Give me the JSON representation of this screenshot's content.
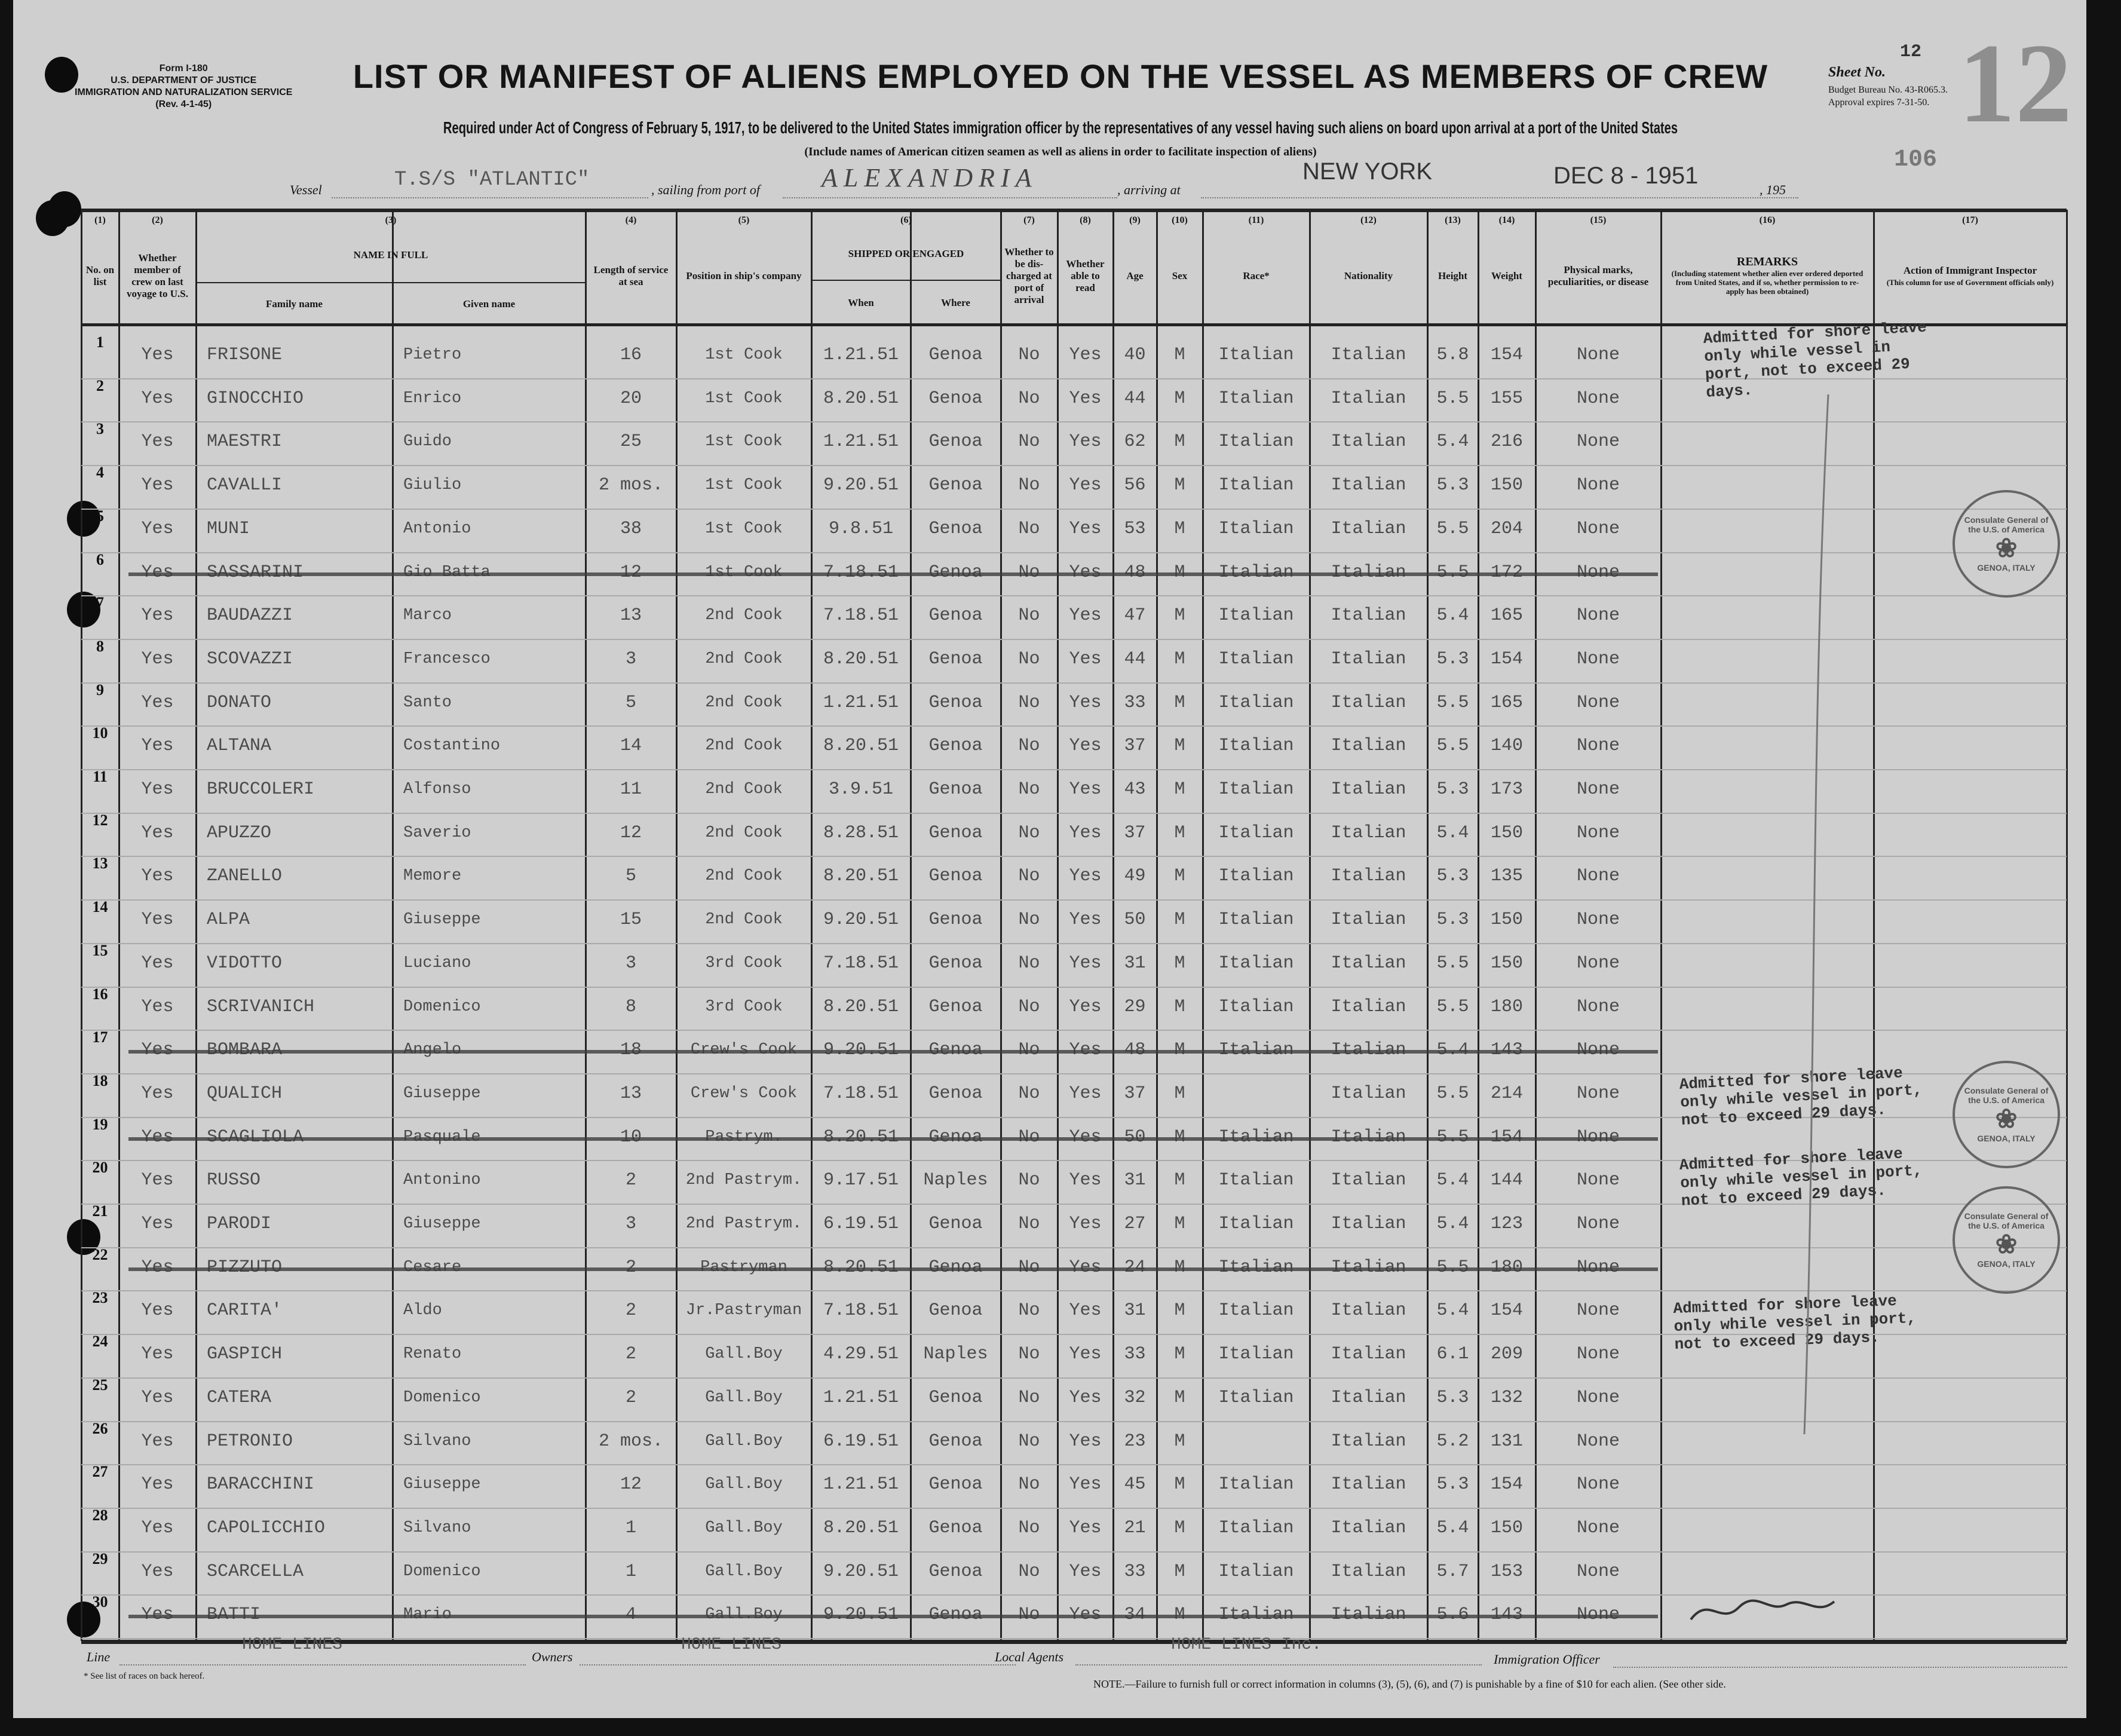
{
  "form": {
    "number": "Form I-180",
    "department": "U.S. DEPARTMENT OF JUSTICE",
    "service": "IMMIGRATION AND NATURALIZATION SERVICE",
    "revision": "(Rev. 4-1-45)"
  },
  "title": "LIST OR MANIFEST OF ALIENS EMPLOYED ON THE VESSEL AS MEMBERS OF CREW",
  "subtitle": "Required under Act of Congress of February 5, 1917, to be delivered to the United States immigration officer by the representatives of any vessel having such aliens on board upon arrival at a port of the United States",
  "subtitle_note": "(Include names of American citizen seamen as well as aliens in order to facilitate inspection of aliens)",
  "sheet": {
    "label": "Sheet No.",
    "number": "12",
    "stamped_number": "12",
    "budget": "Budget Bureau No. 43-R065.3.",
    "approval": "Approval expires 7-31-50.",
    "stamp_106": "106"
  },
  "voyage": {
    "vessel_label": "Vessel",
    "vessel": "T.S/S \"ATLANTIC\"",
    "sailing_label": ", sailing from port of",
    "port": "ALEXANDRIA",
    "arriving_label": ", arriving at",
    "arrival": "NEW YORK",
    "date": "DEC 8 - 1951",
    "year_label": ", 195"
  },
  "columns": [
    {
      "num": "(1)",
      "label": "No. on list"
    },
    {
      "num": "(2)",
      "label": "Whether member of crew on last voyage to U.S."
    },
    {
      "num": "(3)",
      "label": "NAME IN FULL",
      "sub": [
        "Family name",
        "Given name"
      ]
    },
    {
      "num": "(4)",
      "label": "Length of service at sea"
    },
    {
      "num": "(5)",
      "label": "Position in ship's company"
    },
    {
      "num": "(6)",
      "label": "SHIPPED OR ENGAGED",
      "sub": [
        "When",
        "Where"
      ]
    },
    {
      "num": "(7)",
      "label": "Whether to be dis-charged at port of arrival"
    },
    {
      "num": "(8)",
      "label": "Whether able to read"
    },
    {
      "num": "(9)",
      "label": "Age"
    },
    {
      "num": "(10)",
      "label": "Sex"
    },
    {
      "num": "(11)",
      "label": "Race*"
    },
    {
      "num": "(12)",
      "label": "Nationality"
    },
    {
      "num": "(13)",
      "label": "Height"
    },
    {
      "num": "(14)",
      "label": "Weight"
    },
    {
      "num": "(15)",
      "label": "Physical marks, peculiarities, or disease"
    },
    {
      "num": "(16)",
      "label": "REMARKS",
      "note": "(Including statement whether alien ever ordered deported from United States, and if so, whether permission to re-apply has been obtained)"
    },
    {
      "num": "(17)",
      "label": "Action of Immigrant Inspector",
      "note": "(This column for use of Government officials only)"
    }
  ],
  "rows": [
    {
      "no": "1",
      "crew": "Yes",
      "family": "FRISONE",
      "given": "Pietro",
      "service": "16",
      "position": "1st Cook",
      "when": "1.21.51",
      "where": "Genoa",
      "discharge": "No",
      "read": "Yes",
      "age": "40",
      "sex": "M",
      "race": "Italian",
      "nationality": "Italian",
      "height": "5.8",
      "weight": "154",
      "marks": "None",
      "struck": false
    },
    {
      "no": "2",
      "crew": "Yes",
      "family": "GINOCCHIO",
      "given": "Enrico",
      "service": "20",
      "position": "1st Cook",
      "when": "8.20.51",
      "where": "Genoa",
      "discharge": "No",
      "read": "Yes",
      "age": "44",
      "sex": "M",
      "race": "Italian",
      "nationality": "Italian",
      "height": "5.5",
      "weight": "155",
      "marks": "None",
      "struck": false
    },
    {
      "no": "3",
      "crew": "Yes",
      "family": "MAESTRI",
      "given": "Guido",
      "service": "25",
      "position": "1st Cook",
      "when": "1.21.51",
      "where": "Genoa",
      "discharge": "No",
      "read": "Yes",
      "age": "62",
      "sex": "M",
      "race": "Italian",
      "nationality": "Italian",
      "height": "5.4",
      "weight": "216",
      "marks": "None",
      "struck": false
    },
    {
      "no": "4",
      "crew": "Yes",
      "family": "CAVALLI",
      "given": "Giulio",
      "service": "2 mos.",
      "position": "1st Cook",
      "when": "9.20.51",
      "where": "Genoa",
      "discharge": "No",
      "read": "Yes",
      "age": "56",
      "sex": "M",
      "race": "Italian",
      "nationality": "Italian",
      "height": "5.3",
      "weight": "150",
      "marks": "None",
      "struck": false
    },
    {
      "no": "5",
      "crew": "Yes",
      "family": "MUNI",
      "given": "Antonio",
      "service": "38",
      "position": "1st Cook",
      "when": "9.8.51",
      "where": "Genoa",
      "discharge": "No",
      "read": "Yes",
      "age": "53",
      "sex": "M",
      "race": "Italian",
      "nationality": "Italian",
      "height": "5.5",
      "weight": "204",
      "marks": "None",
      "struck": false
    },
    {
      "no": "6",
      "crew": "Yes",
      "family": "SASSARINI",
      "given": "Gio Batta",
      "service": "12",
      "position": "1st Cook",
      "when": "7.18.51",
      "where": "Genoa",
      "discharge": "No",
      "read": "Yes",
      "age": "48",
      "sex": "M",
      "race": "Italian",
      "nationality": "Italian",
      "height": "5.5",
      "weight": "172",
      "marks": "None",
      "struck": true
    },
    {
      "no": "7",
      "crew": "Yes",
      "family": "BAUDAZZI",
      "given": "Marco",
      "service": "13",
      "position": "2nd Cook",
      "when": "7.18.51",
      "where": "Genoa",
      "discharge": "No",
      "read": "Yes",
      "age": "47",
      "sex": "M",
      "race": "Italian",
      "nationality": "Italian",
      "height": "5.4",
      "weight": "165",
      "marks": "None",
      "struck": false
    },
    {
      "no": "8",
      "crew": "Yes",
      "family": "SCOVAZZI",
      "given": "Francesco",
      "service": "3",
      "position": "2nd Cook",
      "when": "8.20.51",
      "where": "Genoa",
      "discharge": "No",
      "read": "Yes",
      "age": "44",
      "sex": "M",
      "race": "Italian",
      "nationality": "Italian",
      "height": "5.3",
      "weight": "154",
      "marks": "None",
      "struck": false
    },
    {
      "no": "9",
      "crew": "Yes",
      "family": "DONATO",
      "given": "Santo",
      "service": "5",
      "position": "2nd Cook",
      "when": "1.21.51",
      "where": "Genoa",
      "discharge": "No",
      "read": "Yes",
      "age": "33",
      "sex": "M",
      "race": "Italian",
      "nationality": "Italian",
      "height": "5.5",
      "weight": "165",
      "marks": "None",
      "struck": false
    },
    {
      "no": "10",
      "crew": "Yes",
      "family": "ALTANA",
      "given": "Costantino",
      "service": "14",
      "position": "2nd Cook",
      "when": "8.20.51",
      "where": "Genoa",
      "discharge": "No",
      "read": "Yes",
      "age": "37",
      "sex": "M",
      "race": "Italian",
      "nationality": "Italian",
      "height": "5.5",
      "weight": "140",
      "marks": "None",
      "struck": false
    },
    {
      "no": "11",
      "crew": "Yes",
      "family": "BRUCCOLERI",
      "given": "Alfonso",
      "service": "11",
      "position": "2nd Cook",
      "when": "3.9.51",
      "where": "Genoa",
      "discharge": "No",
      "read": "Yes",
      "age": "43",
      "sex": "M",
      "race": "Italian",
      "nationality": "Italian",
      "height": "5.3",
      "weight": "173",
      "marks": "None",
      "struck": false
    },
    {
      "no": "12",
      "crew": "Yes",
      "family": "APUZZO",
      "given": "Saverio",
      "service": "12",
      "position": "2nd Cook",
      "when": "8.28.51",
      "where": "Genoa",
      "discharge": "No",
      "read": "Yes",
      "age": "37",
      "sex": "M",
      "race": "Italian",
      "nationality": "Italian",
      "height": "5.4",
      "weight": "150",
      "marks": "None",
      "struck": false
    },
    {
      "no": "13",
      "crew": "Yes",
      "family": "ZANELLO",
      "given": "Memore",
      "service": "5",
      "position": "2nd Cook",
      "when": "8.20.51",
      "where": "Genoa",
      "discharge": "No",
      "read": "Yes",
      "age": "49",
      "sex": "M",
      "race": "Italian",
      "nationality": "Italian",
      "height": "5.3",
      "weight": "135",
      "marks": "None",
      "struck": false
    },
    {
      "no": "14",
      "crew": "Yes",
      "family": "ALPA",
      "given": "Giuseppe",
      "service": "15",
      "position": "2nd Cook",
      "when": "9.20.51",
      "where": "Genoa",
      "discharge": "No",
      "read": "Yes",
      "age": "50",
      "sex": "M",
      "race": "Italian",
      "nationality": "Italian",
      "height": "5.3",
      "weight": "150",
      "marks": "None",
      "struck": false
    },
    {
      "no": "15",
      "crew": "Yes",
      "family": "VIDOTTO",
      "given": "Luciano",
      "service": "3",
      "position": "3rd Cook",
      "when": "7.18.51",
      "where": "Genoa",
      "discharge": "No",
      "read": "Yes",
      "age": "31",
      "sex": "M",
      "race": "Italian",
      "nationality": "Italian",
      "height": "5.5",
      "weight": "150",
      "marks": "None",
      "struck": false
    },
    {
      "no": "16",
      "crew": "Yes",
      "family": "SCRIVANICH",
      "given": "Domenico",
      "service": "8",
      "position": "3rd Cook",
      "when": "8.20.51",
      "where": "Genoa",
      "discharge": "No",
      "read": "Yes",
      "age": "29",
      "sex": "M",
      "race": "Italian",
      "nationality": "Italian",
      "height": "5.5",
      "weight": "180",
      "marks": "None",
      "struck": false
    },
    {
      "no": "17",
      "crew": "Yes",
      "family": "BOMBARA",
      "given": "Angelo",
      "service": "18",
      "position": "Crew's Cook",
      "when": "9.20.51",
      "where": "Genoa",
      "discharge": "No",
      "read": "Yes",
      "age": "48",
      "sex": "M",
      "race": "Italian",
      "nationality": "Italian",
      "height": "5.4",
      "weight": "143",
      "marks": "None",
      "struck": true
    },
    {
      "no": "18",
      "crew": "Yes",
      "family": "QUALICH",
      "given": "Giuseppe",
      "service": "13",
      "position": "Crew's Cook",
      "when": "7.18.51",
      "where": "Genoa",
      "discharge": "No",
      "read": "Yes",
      "age": "37",
      "sex": "M",
      "race": "",
      "nationality": "Italian",
      "height": "5.5",
      "weight": "214",
      "marks": "None",
      "struck": false
    },
    {
      "no": "19",
      "crew": "Yes",
      "family": "SCAGLIOLA",
      "given": "Pasquale",
      "service": "10",
      "position": "Pastrym.",
      "when": "8.20.51",
      "where": "Genoa",
      "discharge": "No",
      "read": "Yes",
      "age": "50",
      "sex": "M",
      "race": "Italian",
      "nationality": "Italian",
      "height": "5.5",
      "weight": "154",
      "marks": "None",
      "struck": true
    },
    {
      "no": "20",
      "crew": "Yes",
      "family": "RUSSO",
      "given": "Antonino",
      "service": "2",
      "position": "2nd Pastrym.",
      "when": "9.17.51",
      "where": "Naples",
      "discharge": "No",
      "read": "Yes",
      "age": "31",
      "sex": "M",
      "race": "Italian",
      "nationality": "Italian",
      "height": "5.4",
      "weight": "144",
      "marks": "None",
      "struck": false
    },
    {
      "no": "21",
      "crew": "Yes",
      "family": "PARODI",
      "given": "Giuseppe",
      "service": "3",
      "position": "2nd Pastrym.",
      "when": "6.19.51",
      "where": "Genoa",
      "discharge": "No",
      "read": "Yes",
      "age": "27",
      "sex": "M",
      "race": "Italian",
      "nationality": "Italian",
      "height": "5.4",
      "weight": "123",
      "marks": "None",
      "struck": false
    },
    {
      "no": "22",
      "crew": "Yes",
      "family": "PIZZUTO",
      "given": "Cesare",
      "service": "2",
      "position": "Pastryman",
      "when": "8.20.51",
      "where": "Genoa",
      "discharge": "No",
      "read": "Yes",
      "age": "24",
      "sex": "M",
      "race": "Italian",
      "nationality": "Italian",
      "height": "5.5",
      "weight": "180",
      "marks": "None",
      "struck": true
    },
    {
      "no": "23",
      "crew": "Yes",
      "family": "CARITA'",
      "given": "Aldo",
      "service": "2",
      "position": "Jr.Pastryman",
      "when": "7.18.51",
      "where": "Genoa",
      "discharge": "No",
      "read": "Yes",
      "age": "31",
      "sex": "M",
      "race": "Italian",
      "nationality": "Italian",
      "height": "5.4",
      "weight": "154",
      "marks": "None",
      "struck": false
    },
    {
      "no": "24",
      "crew": "Yes",
      "family": "GASPICH",
      "given": "Renato",
      "service": "2",
      "position": "Gall.Boy",
      "when": "4.29.51",
      "where": "Naples",
      "discharge": "No",
      "read": "Yes",
      "age": "33",
      "sex": "M",
      "race": "Italian",
      "nationality": "Italian",
      "height": "6.1",
      "weight": "209",
      "marks": "None",
      "struck": false
    },
    {
      "no": "25",
      "crew": "Yes",
      "family": "CATERA",
      "given": "Domenico",
      "service": "2",
      "position": "Gall.Boy",
      "when": "1.21.51",
      "where": "Genoa",
      "discharge": "No",
      "read": "Yes",
      "age": "32",
      "sex": "M",
      "race": "Italian",
      "nationality": "Italian",
      "height": "5.3",
      "weight": "132",
      "marks": "None",
      "struck": false
    },
    {
      "no": "26",
      "crew": "Yes",
      "family": "PETRONIO",
      "given": "Silvano",
      "service": "2 mos.",
      "position": "Gall.Boy",
      "when": "6.19.51",
      "where": "Genoa",
      "discharge": "No",
      "read": "Yes",
      "age": "23",
      "sex": "M",
      "race": "",
      "nationality": "Italian",
      "height": "5.2",
      "weight": "131",
      "marks": "None",
      "struck": false
    },
    {
      "no": "27",
      "crew": "Yes",
      "family": "BARACCHINI",
      "given": "Giuseppe",
      "service": "12",
      "position": "Gall.Boy",
      "when": "1.21.51",
      "where": "Genoa",
      "discharge": "No",
      "read": "Yes",
      "age": "45",
      "sex": "M",
      "race": "Italian",
      "nationality": "Italian",
      "height": "5.3",
      "weight": "154",
      "marks": "None",
      "struck": false
    },
    {
      "no": "28",
      "crew": "Yes",
      "family": "CAPOLICCHIO",
      "given": "Silvano",
      "service": "1",
      "position": "Gall.Boy",
      "when": "8.20.51",
      "where": "Genoa",
      "discharge": "No",
      "read": "Yes",
      "age": "21",
      "sex": "M",
      "race": "Italian",
      "nationality": "Italian",
      "height": "5.4",
      "weight": "150",
      "marks": "None",
      "struck": false
    },
    {
      "no": "29",
      "crew": "Yes",
      "family": "SCARCELLA",
      "given": "Domenico",
      "service": "1",
      "position": "Gall.Boy",
      "when": "9.20.51",
      "where": "Genoa",
      "discharge": "No",
      "read": "Yes",
      "age": "33",
      "sex": "M",
      "race": "Italian",
      "nationality": "Italian",
      "height": "5.7",
      "weight": "153",
      "marks": "None",
      "struck": false
    },
    {
      "no": "30",
      "crew": "Yes",
      "family": "BATTI",
      "given": "Mario",
      "service": "4",
      "position": "Gall.Boy",
      "when": "9.20.51",
      "where": "Genoa",
      "discharge": "No",
      "read": "Yes",
      "age": "34",
      "sex": "M",
      "race": "Italian",
      "nationality": "Italian",
      "height": "5.6",
      "weight": "143",
      "marks": "None",
      "struck": true
    }
  ],
  "remarks_stamp": "Admitted for shore leave only while vessel in port, not to exceed 29 days.",
  "consulate_stamp": {
    "text": "Consulate General of the U.S. of America",
    "city": "GENOA, ITALY"
  },
  "footer": {
    "line_label": "Line",
    "line": "HOME LINES",
    "owners_label": "Owners",
    "owners": "HOME LINES",
    "agents_label": "Local Agents",
    "agents": "HOME LINES Inc.",
    "officer_label": "Immigration Officer",
    "races_note": "* See list of races on back hereof.",
    "note": "NOTE.—Failure to furnish full or correct information in columns (3), (5), (6), and (7) is punishable by a fine of $10 for each alien.   (See other side."
  }
}
